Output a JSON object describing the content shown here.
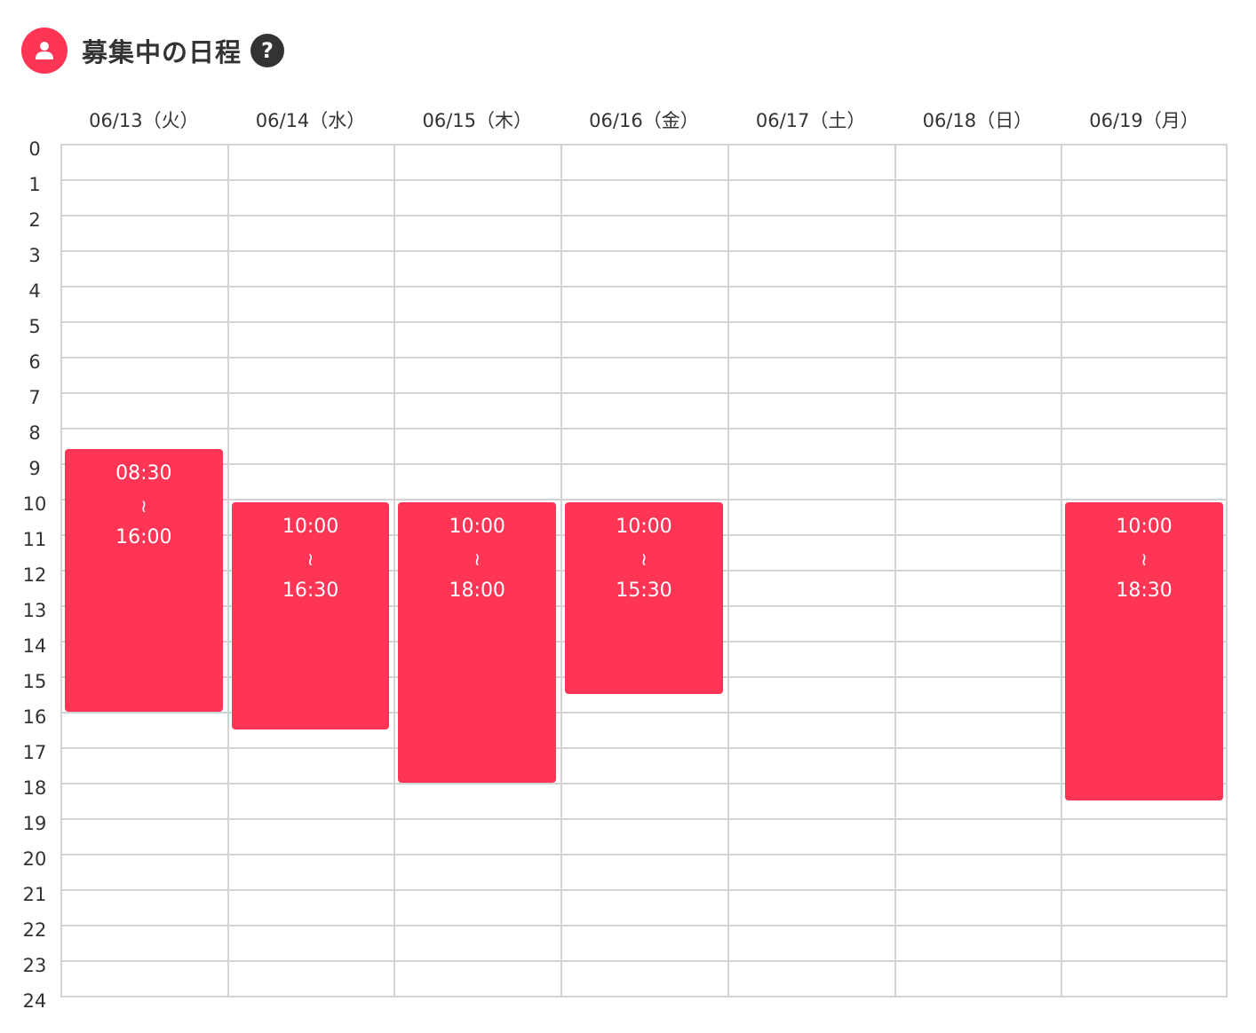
{
  "header": {
    "title": "募集中の日程",
    "user_icon": "user-icon",
    "help_label": "?",
    "accent_color": "#ff3556"
  },
  "days": [
    {
      "label": "06/13（火）"
    },
    {
      "label": "06/14（水）"
    },
    {
      "label": "06/15（木）"
    },
    {
      "label": "06/16（金）"
    },
    {
      "label": "06/17（土）"
    },
    {
      "label": "06/18（日）"
    },
    {
      "label": "06/19（月）"
    }
  ],
  "hours": [
    "0",
    "1",
    "2",
    "3",
    "4",
    "5",
    "6",
    "7",
    "8",
    "9",
    "10",
    "11",
    "12",
    "13",
    "14",
    "15",
    "16",
    "17",
    "18",
    "19",
    "20",
    "21",
    "22",
    "23",
    "24"
  ],
  "slots": [
    {
      "day": 0,
      "start": "08:30",
      "sep": "≀",
      "end": "16:00"
    },
    {
      "day": 1,
      "start": "10:00",
      "sep": "≀",
      "end": "16:30"
    },
    {
      "day": 2,
      "start": "10:00",
      "sep": "≀",
      "end": "18:00"
    },
    {
      "day": 3,
      "start": "10:00",
      "sep": "≀",
      "end": "15:30"
    },
    {
      "day": 6,
      "start": "10:00",
      "sep": "≀",
      "end": "18:30"
    }
  ]
}
